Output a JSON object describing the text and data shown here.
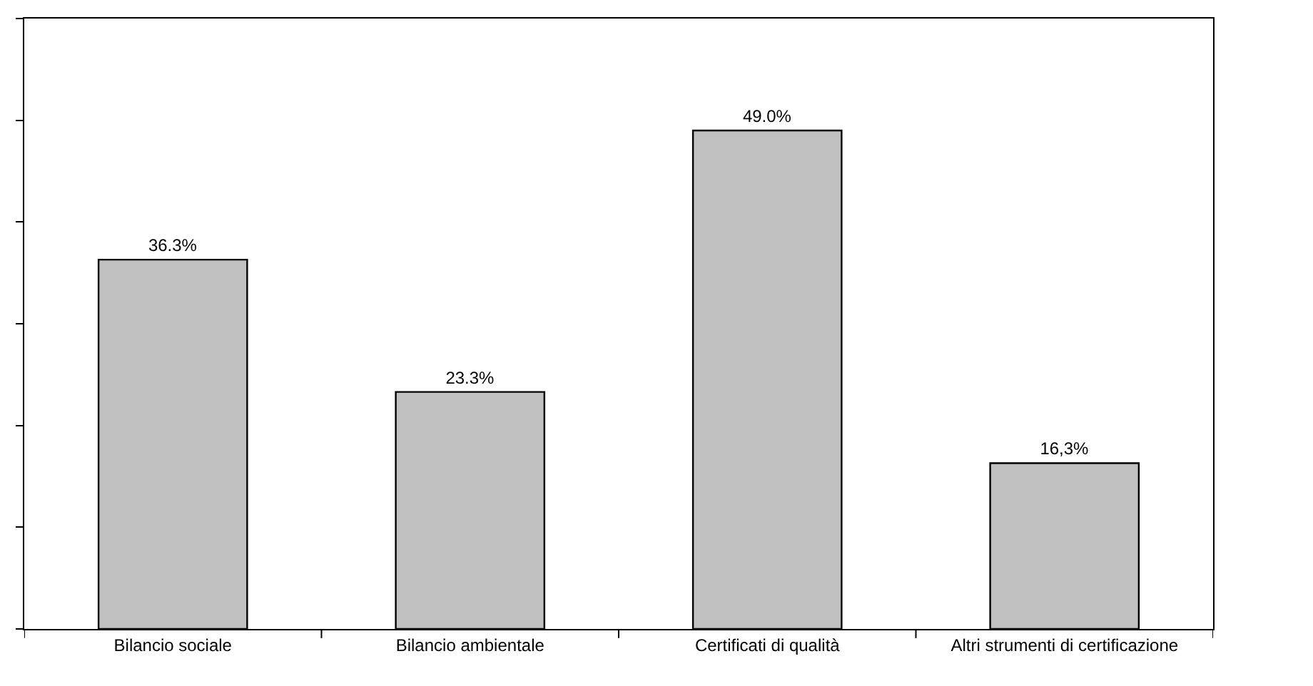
{
  "chart_data": {
    "type": "bar",
    "categories": [
      "Bilancio sociale",
      "Bilancio ambientale",
      "Certificati di qualità",
      "Altri strumenti di certificazione"
    ],
    "values": [
      36.3,
      23.3,
      49.0,
      16.3
    ],
    "value_labels": [
      "36.3%",
      "23.3%",
      "49.0%",
      "16,3%"
    ],
    "color": "#c0c0c0",
    "ylim": [
      0,
      60
    ],
    "yticks": [
      {
        "value": 0,
        "label": null
      },
      {
        "value": 10,
        "label": null
      },
      {
        "value": 20,
        "label": null
      },
      {
        "value": 30,
        "label": null
      },
      {
        "value": 40,
        "label": null
      },
      {
        "value": 50,
        "label": null
      },
      {
        "value": 60,
        "label": null
      }
    ],
    "tick_labels": "x"
  }
}
